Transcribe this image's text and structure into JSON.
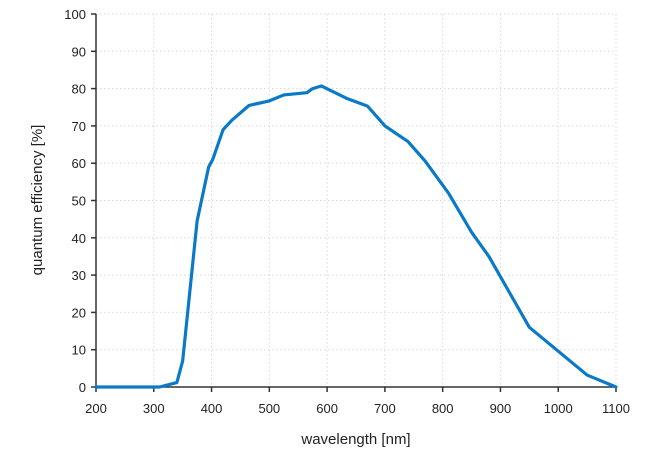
{
  "chart_data": {
    "type": "line",
    "title": "",
    "xlabel": "wavelength [nm]",
    "ylabel": "quantum efficiency [%]",
    "xlim": [
      200,
      1100
    ],
    "ylim": [
      0,
      100
    ],
    "xticks": [
      200,
      300,
      400,
      500,
      600,
      700,
      800,
      900,
      1000,
      1100
    ],
    "yticks": [
      0,
      10,
      20,
      30,
      40,
      50,
      60,
      70,
      80,
      90,
      100
    ],
    "grid": true,
    "color": "#0a7ac8",
    "series": [
      {
        "name": "quantum efficiency",
        "x": [
          200,
          310,
          340,
          350,
          360,
          375,
          395,
          402,
          420,
          435,
          465,
          500,
          525,
          565,
          575,
          590,
          635,
          670,
          700,
          740,
          770,
          810,
          850,
          880,
          950,
          1050,
          1100
        ],
        "y": [
          0,
          0,
          1.2,
          7,
          22,
          44.5,
          59,
          61,
          69,
          71.5,
          75.5,
          76.7,
          78.3,
          78.9,
          80,
          80.7,
          77.3,
          75.3,
          70,
          65.8,
          60.5,
          52,
          41.5,
          35,
          16,
          3.2,
          0
        ]
      }
    ]
  }
}
